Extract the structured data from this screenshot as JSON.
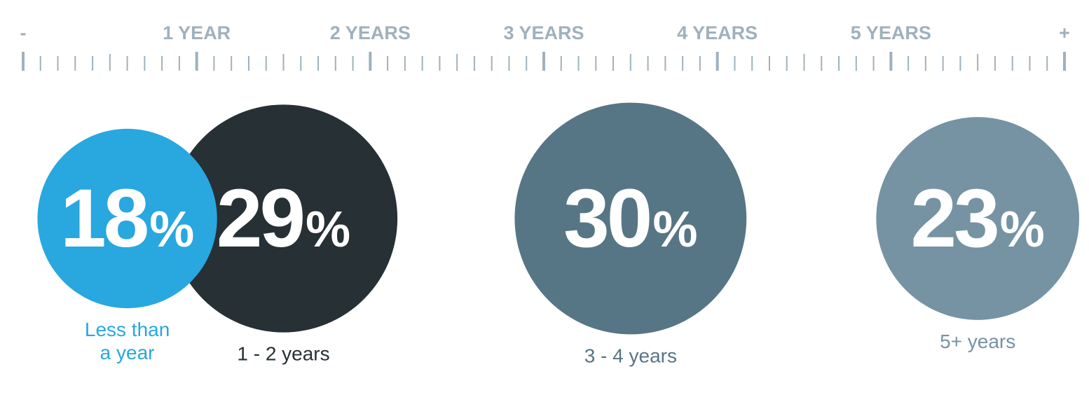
{
  "chart_data": {
    "type": "bubble",
    "title": "",
    "axis": {
      "start_label": "-",
      "end_label": "+",
      "range": [
        0,
        6
      ],
      "labels": [
        {
          "value": 1,
          "text": "1 YEAR"
        },
        {
          "value": 2,
          "text": "2 YEARS"
        },
        {
          "value": 3,
          "text": "3 YEARS"
        },
        {
          "value": 4,
          "text": "4 YEARS"
        },
        {
          "value": 5,
          "text": "5 YEARS"
        }
      ],
      "major_step": 1,
      "minor_per_major": 10,
      "color": "#9fb1bd"
    },
    "series": [
      {
        "category": "Less than a year",
        "lines": [
          "Less than",
          "a year"
        ],
        "value": 18,
        "unit": "%",
        "position": 0.6,
        "color": "#29a7df",
        "label_color": "#29a7df"
      },
      {
        "category": "1 - 2 years",
        "lines": [
          "1 - 2 years"
        ],
        "value": 29,
        "unit": "%",
        "position": 1.5,
        "color": "#263035",
        "label_color": "#263035"
      },
      {
        "category": "3 - 4 years",
        "lines": [
          "3 - 4 years"
        ],
        "value": 30,
        "unit": "%",
        "position": 3.5,
        "color": "#577685",
        "label_color": "#577685"
      },
      {
        "category": "5+ years",
        "lines": [
          "5+ years"
        ],
        "value": 23,
        "unit": "%",
        "position": 5.5,
        "color": "#7593a3",
        "label_color": "#7593a3"
      }
    ]
  }
}
